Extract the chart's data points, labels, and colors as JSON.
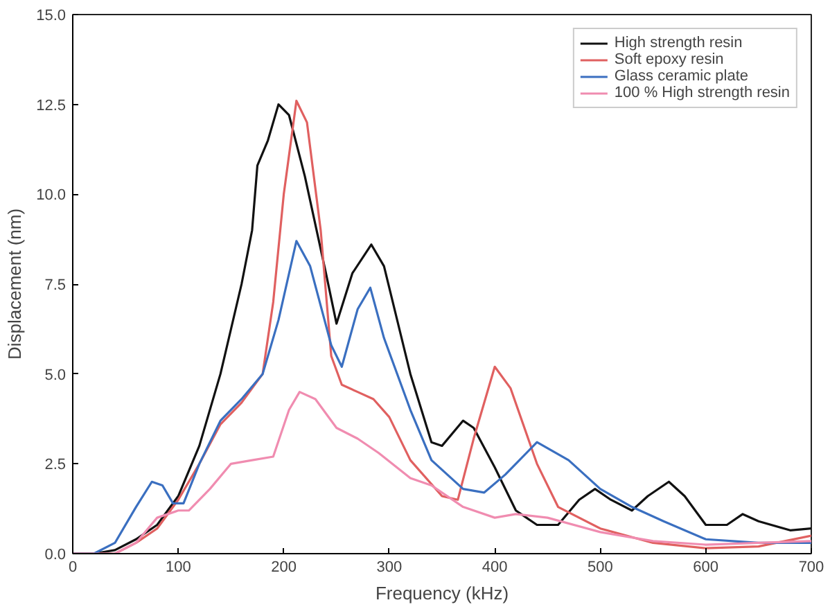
{
  "chart_data": {
    "type": "line",
    "xlabel": "Frequency (kHz)",
    "ylabel": "Displacement (nm)",
    "xlim": [
      0,
      700
    ],
    "ylim": [
      0,
      15
    ],
    "xticks": [
      0,
      100,
      200,
      300,
      400,
      500,
      600,
      700
    ],
    "yticks": [
      {
        "value": 0,
        "label": "0.0"
      },
      {
        "value": 2.5,
        "label": "2.5"
      },
      {
        "value": 5,
        "label": "5.0"
      },
      {
        "value": 7.5,
        "label": "7.5"
      },
      {
        "value": 10,
        "label": "10.0"
      },
      {
        "value": 12.5,
        "label": "12.5"
      },
      {
        "value": 15,
        "label": "15.0"
      }
    ],
    "grid": false,
    "legend": "top right",
    "marker": "none",
    "line_style": "solid",
    "series": [
      {
        "name": "High strength resin",
        "color": "#111111",
        "x": [
          0,
          20,
          40,
          60,
          80,
          100,
          120,
          140,
          160,
          170,
          175,
          185,
          195,
          205,
          220,
          240,
          250,
          265,
          283,
          295,
          320,
          340,
          350,
          370,
          380,
          400,
          420,
          440,
          460,
          480,
          495,
          510,
          530,
          545,
          565,
          580,
          600,
          620,
          635,
          650,
          680,
          700
        ],
        "values": [
          0,
          0,
          0.1,
          0.4,
          0.8,
          1.6,
          3.0,
          5.0,
          7.5,
          9.0,
          10.8,
          11.5,
          12.5,
          12.2,
          10.5,
          7.8,
          6.4,
          7.8,
          8.6,
          8.0,
          5.0,
          3.1,
          3.0,
          3.7,
          3.5,
          2.4,
          1.2,
          0.8,
          0.8,
          1.5,
          1.8,
          1.5,
          1.2,
          1.6,
          2.0,
          1.6,
          0.8,
          0.8,
          1.1,
          0.9,
          0.65,
          0.7
        ]
      },
      {
        "name": "Soft epoxy resin",
        "color": "#e06060",
        "x": [
          0,
          40,
          60,
          80,
          100,
          120,
          140,
          160,
          180,
          190,
          200,
          212,
          222,
          235,
          245,
          255,
          270,
          285,
          300,
          320,
          350,
          365,
          380,
          400,
          415,
          440,
          460,
          500,
          550,
          600,
          650,
          700
        ],
        "values": [
          0,
          0,
          0.3,
          0.7,
          1.5,
          2.5,
          3.6,
          4.2,
          5.0,
          7.0,
          10.0,
          12.6,
          12.0,
          9.0,
          5.5,
          4.7,
          4.5,
          4.3,
          3.8,
          2.6,
          1.6,
          1.5,
          3.2,
          5.2,
          4.6,
          2.5,
          1.3,
          0.7,
          0.3,
          0.15,
          0.2,
          0.5
        ]
      },
      {
        "name": "Glass ceramic plate",
        "color": "#3a6fc0",
        "x": [
          0,
          20,
          40,
          60,
          75,
          85,
          95,
          105,
          120,
          140,
          160,
          180,
          195,
          212,
          225,
          245,
          255,
          270,
          282,
          295,
          320,
          340,
          370,
          390,
          410,
          440,
          470,
          500,
          530,
          560,
          600,
          650,
          700
        ],
        "values": [
          0,
          0,
          0.3,
          1.3,
          2.0,
          1.9,
          1.4,
          1.4,
          2.5,
          3.7,
          4.3,
          5.0,
          6.5,
          8.7,
          8.0,
          5.8,
          5.2,
          6.8,
          7.4,
          6.0,
          4.0,
          2.6,
          1.8,
          1.7,
          2.2,
          3.1,
          2.6,
          1.8,
          1.3,
          0.9,
          0.4,
          0.3,
          0.3
        ]
      },
      {
        "name": "100 % High strength resin",
        "color": "#f08cb0",
        "x": [
          0,
          40,
          60,
          80,
          100,
          110,
          130,
          150,
          170,
          190,
          205,
          215,
          230,
          250,
          270,
          290,
          320,
          340,
          370,
          400,
          420,
          450,
          500,
          550,
          600,
          650,
          700
        ],
        "values": [
          0,
          0,
          0.3,
          1.0,
          1.2,
          1.2,
          1.8,
          2.5,
          2.6,
          2.7,
          4.0,
          4.5,
          4.3,
          3.5,
          3.2,
          2.8,
          2.1,
          1.9,
          1.3,
          1.0,
          1.1,
          1.0,
          0.6,
          0.35,
          0.25,
          0.3,
          0.35
        ]
      }
    ]
  }
}
